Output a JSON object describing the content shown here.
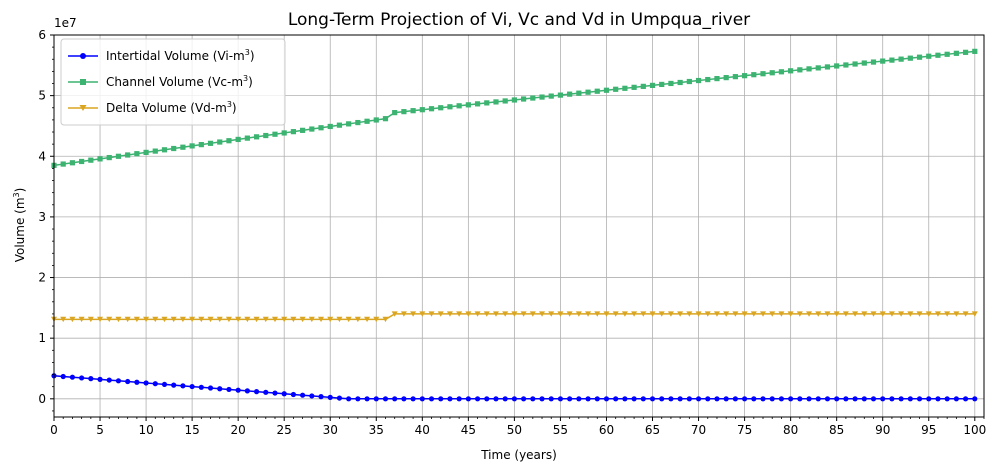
{
  "chart_data": {
    "type": "line",
    "title": "Long-Term Projection of Vi, Vc and Vd in Umpqua_river",
    "xlabel": "Time (years)",
    "ylabel_text": "Volume (m",
    "ylabel_sup": "3",
    "ylabel_close": ")",
    "y_offset_label": "1e7",
    "xlim": [
      0,
      101
    ],
    "ylim": [
      -0.3,
      6.0
    ],
    "y_scale": 10000000,
    "grid": true,
    "legend_position": "upper-left",
    "x_ticks": [
      0,
      5,
      10,
      15,
      20,
      25,
      30,
      35,
      40,
      45,
      50,
      55,
      60,
      65,
      70,
      75,
      80,
      85,
      90,
      95,
      100
    ],
    "x_tick_labels": [
      "0",
      "5",
      "10",
      "15",
      "20",
      "25",
      "30",
      "35",
      "40",
      "45",
      "50",
      "55",
      "60",
      "65",
      "70",
      "75",
      "80",
      "85",
      "90",
      "95",
      "100"
    ],
    "y_ticks": [
      0,
      1,
      2,
      3,
      4,
      5,
      6
    ],
    "y_tick_labels": [
      "0",
      "1",
      "2",
      "3",
      "4",
      "5",
      "6"
    ],
    "series": [
      {
        "key": "vi",
        "label_main": "Intertidal Volume (Vi-m",
        "label_sup": "3",
        "label_close": ")",
        "color": "#0000ff",
        "marker": "circle",
        "description": "Starts near 0.38e7, declines roughly linearly to 0 by year ~32 and stays at 0",
        "start_value": 0.38,
        "zero_year": 32
      },
      {
        "key": "vc",
        "label_main": "Channel Volume (Vc-m",
        "label_sup": "3",
        "label_close": ")",
        "color": "#3cb371",
        "marker": "square",
        "segments": [
          {
            "from_year": 0,
            "to_year": 36,
            "from_value": 3.85,
            "to_value": 4.62
          },
          {
            "from_year": 37,
            "to_year": 100,
            "from_value": 4.72,
            "to_value": 5.73
          }
        ]
      },
      {
        "key": "vd",
        "label_main": "Delta Volume (Vd-m",
        "label_sup": "3",
        "label_close": ")",
        "color": "#daa520",
        "marker": "triangle-down",
        "segments": [
          {
            "from_year": 0,
            "to_year": 36,
            "value": 1.31
          },
          {
            "from_year": 37,
            "to_year": 100,
            "value": 1.4
          }
        ]
      }
    ]
  }
}
